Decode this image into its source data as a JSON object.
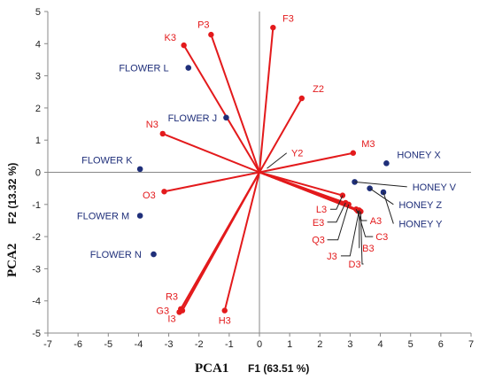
{
  "chart_data": {
    "type": "scatter",
    "xlim": [
      -7,
      7
    ],
    "ylim": [
      -5,
      5
    ],
    "x_ticks": [
      -7,
      -6,
      -5,
      -4,
      -3,
      -2,
      -1,
      0,
      1,
      2,
      3,
      4,
      5,
      6,
      7
    ],
    "y_ticks": [
      -5,
      -4,
      -3,
      -2,
      -1,
      0,
      1,
      2,
      3,
      4,
      5
    ],
    "grid": false,
    "xlabel_main": "PCA1",
    "xlabel_sub": "F1 (63.51 %)",
    "ylabel_main": "PCA2",
    "ylabel_sub": "F2 (13.32 %)",
    "colors": {
      "variables": "#e31a1c",
      "samples": "#1f2f7a",
      "leader": "#222222",
      "axis": "#888888"
    },
    "variables": [
      {
        "name": "F3",
        "x": 0.45,
        "y": 4.5
      },
      {
        "name": "P3",
        "x": -1.6,
        "y": 4.28
      },
      {
        "name": "K3",
        "x": -2.5,
        "y": 3.95
      },
      {
        "name": "Z2",
        "x": 1.4,
        "y": 2.3
      },
      {
        "name": "N3",
        "x": -3.2,
        "y": 1.2
      },
      {
        "name": "M3",
        "x": 3.1,
        "y": 0.6
      },
      {
        "name": "O3",
        "x": -3.15,
        "y": -0.6
      },
      {
        "name": "L3",
        "x": 2.75,
        "y": -0.72
      },
      {
        "name": "E3",
        "x": 2.85,
        "y": -0.95
      },
      {
        "name": "Q3",
        "x": 2.95,
        "y": -1.0
      },
      {
        "name": "A3",
        "x": 3.2,
        "y": -1.15
      },
      {
        "name": "C3",
        "x": 3.25,
        "y": -1.2
      },
      {
        "name": "B3",
        "x": 3.3,
        "y": -1.2
      },
      {
        "name": "D3",
        "x": 3.35,
        "y": -1.22
      },
      {
        "name": "J3",
        "x": 3.3,
        "y": -1.18
      },
      {
        "name": "H3",
        "x": -1.15,
        "y": -4.3
      },
      {
        "name": "G3",
        "x": -2.55,
        "y": -4.3
      },
      {
        "name": "R3",
        "x": -2.6,
        "y": -4.25
      },
      {
        "name": "I3",
        "x": -2.65,
        "y": -4.35
      }
    ],
    "var_labels": [
      {
        "text": "F3",
        "x": 0.95,
        "y": 4.8
      },
      {
        "text": "P3",
        "x": -1.85,
        "y": 4.6
      },
      {
        "text": "K3",
        "x": -2.95,
        "y": 4.2
      },
      {
        "text": "Z2",
        "x": 1.95,
        "y": 2.6
      },
      {
        "text": "N3",
        "x": -3.55,
        "y": 1.5
      },
      {
        "text": "M3",
        "x": 3.6,
        "y": 0.9
      },
      {
        "text": "O3",
        "x": -3.65,
        "y": -0.7
      },
      {
        "text": "Y2",
        "x": 1.25,
        "y": 0.6
      },
      {
        "text": "R3",
        "x": -2.9,
        "y": -3.85
      },
      {
        "text": "G3",
        "x": -3.2,
        "y": -4.3
      },
      {
        "text": "I3",
        "x": -2.9,
        "y": -4.55
      },
      {
        "text": "H3",
        "x": -1.15,
        "y": -4.6
      }
    ],
    "y2_leader": {
      "x1": 0.25,
      "y1": 0.12,
      "x2": 0.9,
      "y2": 0.6
    },
    "cluster_labels": [
      {
        "text": "L3",
        "lx": 2.05,
        "ly": -1.15,
        "ax": 2.75,
        "ay": -0.72
      },
      {
        "text": "E3",
        "lx": 1.95,
        "ly": -1.55,
        "ax": 2.85,
        "ay": -0.95
      },
      {
        "text": "Q3",
        "lx": 1.95,
        "ly": -2.1,
        "ax": 2.95,
        "ay": -1.0
      },
      {
        "text": "A3",
        "lx": 3.85,
        "ly": -1.5,
        "ax": 3.2,
        "ay": -1.15
      },
      {
        "text": "C3",
        "lx": 4.05,
        "ly": -2.0,
        "ax": 3.25,
        "ay": -1.2
      },
      {
        "text": "B3",
        "lx": 3.6,
        "ly": -2.35,
        "ax": 3.3,
        "ay": -1.2
      },
      {
        "text": "J3",
        "lx": 2.4,
        "ly": -2.6,
        "ax": 3.3,
        "ay": -1.18
      },
      {
        "text": "D3",
        "lx": 3.15,
        "ly": -2.85,
        "ax": 3.35,
        "ay": -1.22
      }
    ],
    "samples": [
      {
        "name": "FLOWER L",
        "x": -2.35,
        "y": 3.25,
        "lx": -3.0,
        "ly": 3.25,
        "anchor": "end"
      },
      {
        "name": "FLOWER J",
        "x": -1.1,
        "y": 1.7,
        "lx": -1.4,
        "ly": 1.7,
        "anchor": "end"
      },
      {
        "name": "FLOWER K",
        "x": -3.95,
        "y": 0.1,
        "lx": -4.2,
        "ly": 0.38,
        "anchor": "end"
      },
      {
        "name": "FLOWER M",
        "x": -3.95,
        "y": -1.35,
        "lx": -4.3,
        "ly": -1.35,
        "anchor": "end"
      },
      {
        "name": "FLOWER N",
        "x": -3.5,
        "y": -2.55,
        "lx": -3.9,
        "ly": -2.55,
        "anchor": "end"
      },
      {
        "name": "HONEY X",
        "x": 4.2,
        "y": 0.28,
        "lx": 4.55,
        "ly": 0.55,
        "anchor": "start"
      },
      {
        "name": "HONEY V",
        "x": 3.15,
        "y": -0.3,
        "lx": 5.0,
        "ly": -0.45,
        "anchor": "start",
        "lead": true
      },
      {
        "name": "HONEY Z",
        "x": 3.65,
        "y": -0.5,
        "lx": 4.55,
        "ly": -1.0,
        "anchor": "start",
        "lead": true
      },
      {
        "name": "HONEY Y",
        "x": 4.1,
        "y": -0.62,
        "lx": 4.55,
        "ly": -1.6,
        "anchor": "start",
        "lead": true
      }
    ]
  }
}
